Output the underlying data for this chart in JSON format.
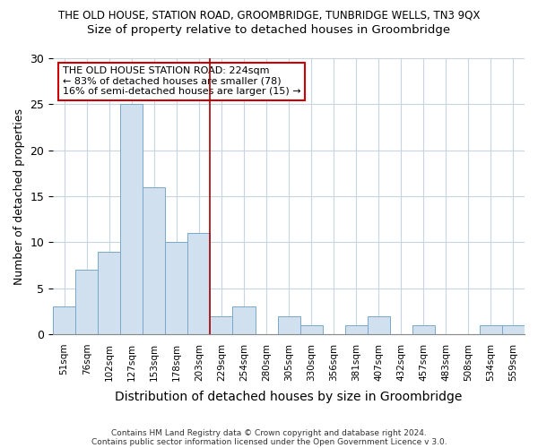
{
  "title": "THE OLD HOUSE, STATION ROAD, GROOMBRIDGE, TUNBRIDGE WELLS, TN3 9QX",
  "subtitle": "Size of property relative to detached houses in Groombridge",
  "xlabel": "Distribution of detached houses by size in Groombridge",
  "ylabel": "Number of detached properties",
  "bar_labels": [
    "51sqm",
    "76sqm",
    "102sqm",
    "127sqm",
    "153sqm",
    "178sqm",
    "203sqm",
    "229sqm",
    "254sqm",
    "280sqm",
    "305sqm",
    "330sqm",
    "356sqm",
    "381sqm",
    "407sqm",
    "432sqm",
    "457sqm",
    "483sqm",
    "508sqm",
    "534sqm",
    "559sqm"
  ],
  "bar_values": [
    3,
    7,
    9,
    25,
    16,
    10,
    11,
    2,
    3,
    0,
    2,
    1,
    0,
    1,
    2,
    0,
    1,
    0,
    0,
    1,
    1
  ],
  "bar_color": "#d0e0ef",
  "bar_edgecolor": "#7aA8c8",
  "property_line_label": "THE OLD HOUSE STATION ROAD: 224sqm",
  "annotation_line1": "← 83% of detached houses are smaller (78)",
  "annotation_line2": "16% of semi-detached houses are larger (15) →",
  "annotation_box_color": "#cc0000",
  "vline_color": "#aa0000",
  "vline_index": 7,
  "ylim": [
    0,
    30
  ],
  "yticks": [
    0,
    5,
    10,
    15,
    20,
    25,
    30
  ],
  "background_color": "#ffffff",
  "grid_color": "#c8d4e0",
  "footer1": "Contains HM Land Registry data © Crown copyright and database right 2024.",
  "footer2": "Contains public sector information licensed under the Open Government Licence v 3.0."
}
